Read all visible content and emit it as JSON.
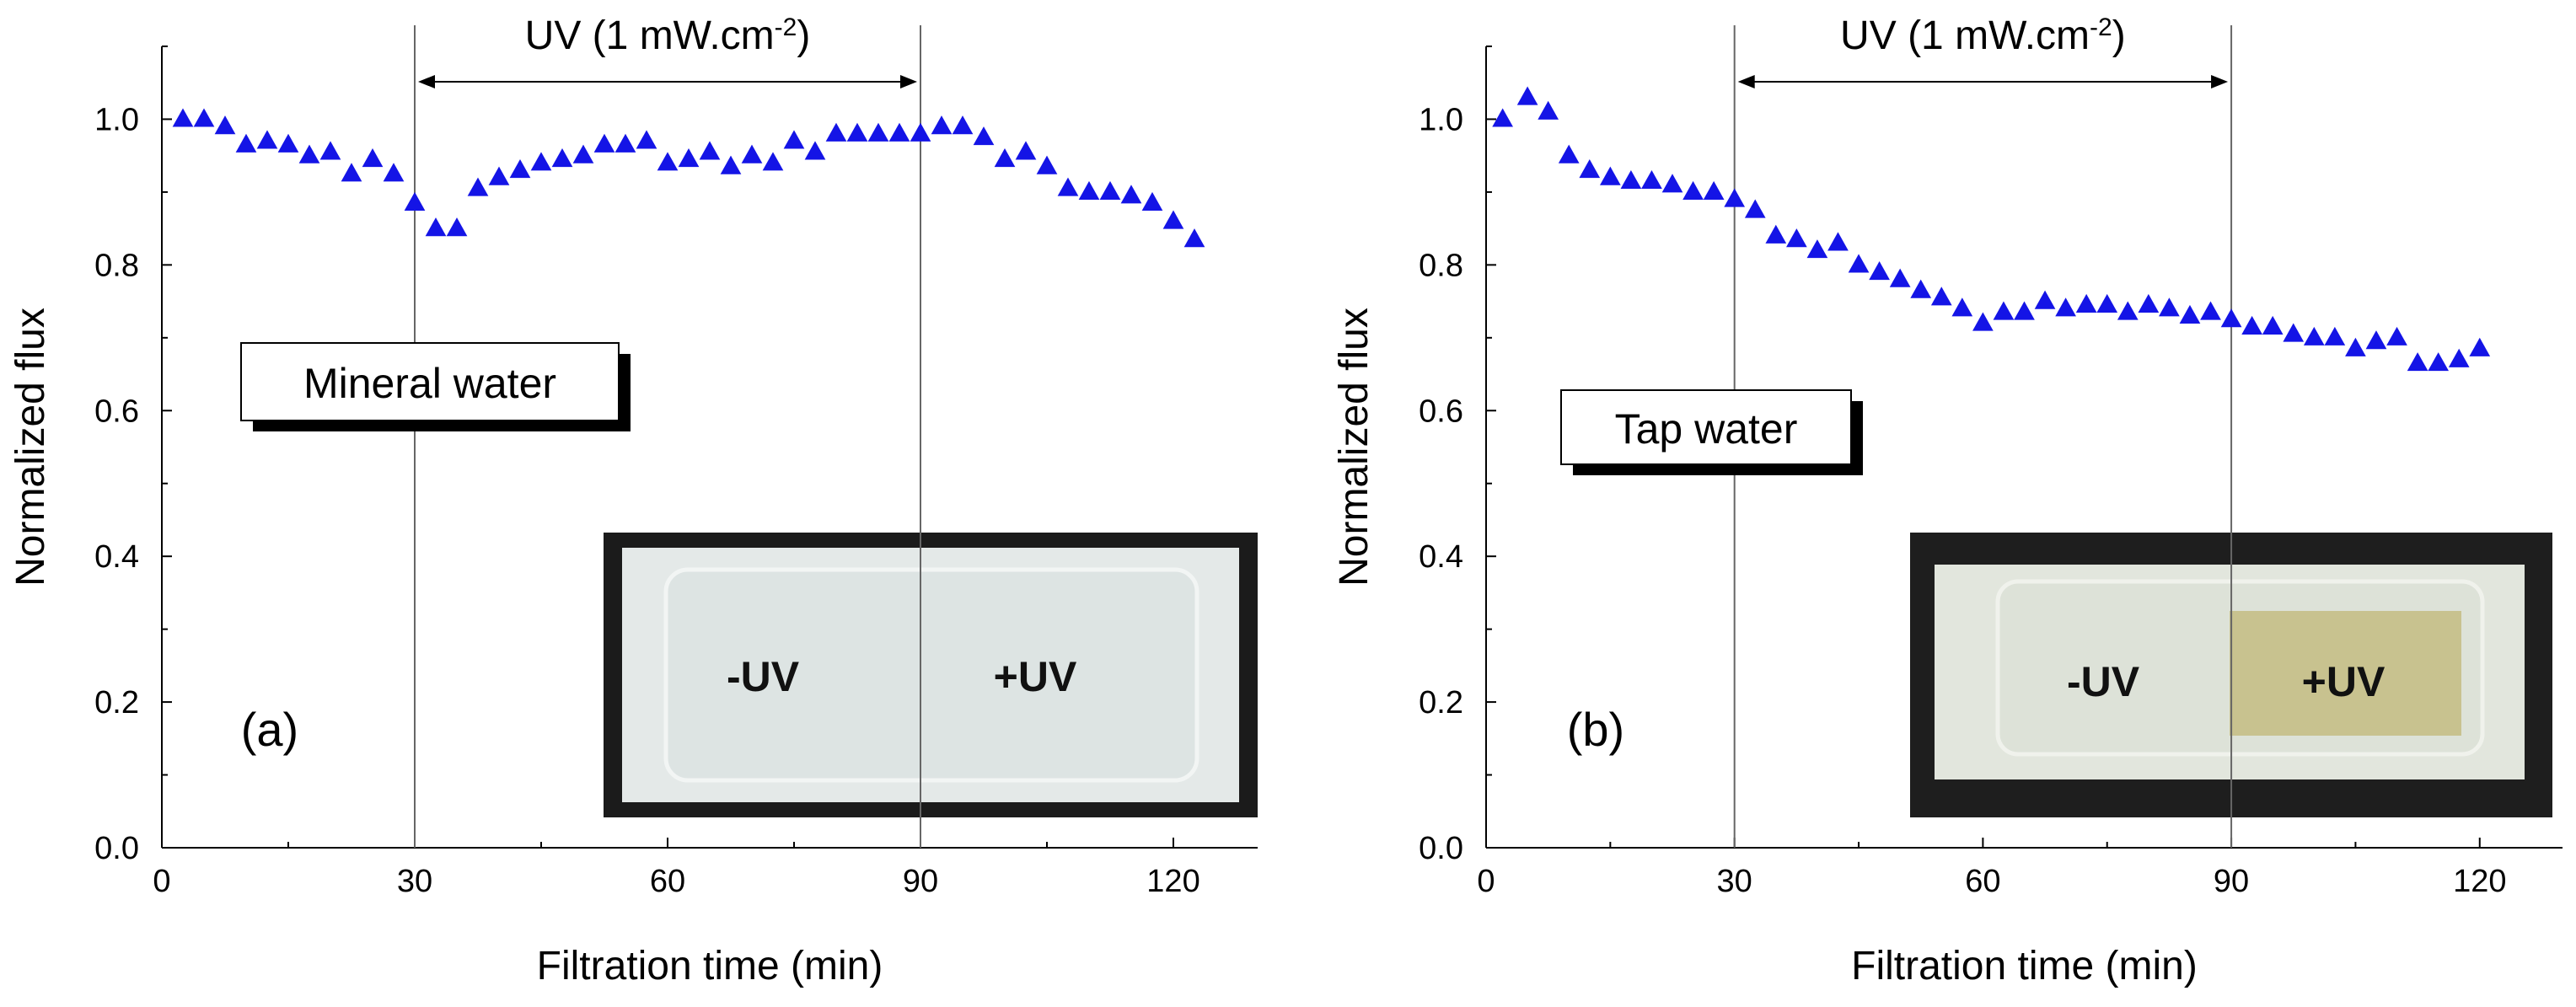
{
  "chart_data": [
    {
      "type": "scatter",
      "panel_label": "(a)",
      "legend_box": "Mineral water",
      "xlabel": "Filtration time (min)",
      "ylabel": "Normalized flux",
      "xlim": [
        0,
        130
      ],
      "ylim": [
        0,
        1.1
      ],
      "xticks": [
        "0",
        "30",
        "60",
        "90",
        "120"
      ],
      "yticks": [
        "0.0",
        "0.2",
        "0.4",
        "0.6",
        "0.8",
        "1.0"
      ],
      "uv_label": "UV (1 mW.cm",
      "uv_superscript": "-2",
      "uv_close": ")",
      "uv_start": 30,
      "uv_end": 90,
      "marker_color": "#1414e6",
      "inset": {
        "minus_label": "-UV",
        "plus_label": "+UV",
        "plus_tint": false
      },
      "series": [
        {
          "name": "Normalized flux",
          "x": [
            2.5,
            5,
            7.5,
            10,
            12.5,
            15,
            17.5,
            20,
            22.5,
            25,
            27.5,
            30,
            32.5,
            35,
            37.5,
            40,
            42.5,
            45,
            47.5,
            50,
            52.5,
            55,
            57.5,
            60,
            62.5,
            65,
            67.5,
            70,
            72.5,
            75,
            77.5,
            80,
            82.5,
            85,
            87.5,
            90,
            92.5,
            95,
            97.5,
            100,
            102.5,
            105,
            107.5,
            110,
            112.5,
            115,
            117.5,
            120,
            122.5
          ],
          "y": [
            1.0,
            1.0,
            0.99,
            0.965,
            0.97,
            0.965,
            0.95,
            0.955,
            0.925,
            0.945,
            0.925,
            0.885,
            0.85,
            0.85,
            0.905,
            0.92,
            0.93,
            0.94,
            0.945,
            0.95,
            0.965,
            0.965,
            0.97,
            0.94,
            0.945,
            0.955,
            0.935,
            0.95,
            0.94,
            0.97,
            0.955,
            0.98,
            0.98,
            0.98,
            0.98,
            0.98,
            0.99,
            0.99,
            0.975,
            0.945,
            0.955,
            0.935,
            0.905,
            0.9,
            0.9,
            0.895,
            0.885,
            0.86,
            0.835
          ]
        }
      ]
    },
    {
      "type": "scatter",
      "panel_label": "(b)",
      "legend_box": "Tap water",
      "xlabel": "Filtration time (min)",
      "ylabel": "Normalized flux",
      "xlim": [
        0,
        130
      ],
      "ylim": [
        0,
        1.1
      ],
      "xticks": [
        "0",
        "30",
        "60",
        "90",
        "120"
      ],
      "yticks": [
        "0.0",
        "0.2",
        "0.4",
        "0.6",
        "0.8",
        "1.0"
      ],
      "uv_label": "UV (1 mW.cm",
      "uv_superscript": "-2",
      "uv_close": ")",
      "uv_start": 30,
      "uv_end": 90,
      "marker_color": "#1414e6",
      "inset": {
        "minus_label": "-UV",
        "plus_label": "+UV",
        "plus_tint": true
      },
      "series": [
        {
          "name": "Normalized flux",
          "x": [
            2,
            5,
            7.5,
            10,
            12.5,
            15,
            17.5,
            20,
            22.5,
            25,
            27.5,
            30,
            32.5,
            35,
            37.5,
            40,
            42.5,
            45,
            47.5,
            50,
            52.5,
            55,
            57.5,
            60,
            62.5,
            65,
            67.5,
            70,
            72.5,
            75,
            77.5,
            80,
            82.5,
            85,
            87.5,
            90,
            92.5,
            95,
            97.5,
            100,
            102.5,
            105,
            107.5,
            110,
            112.5,
            115,
            117.5,
            120
          ],
          "y": [
            1.0,
            1.03,
            1.01,
            0.95,
            0.93,
            0.92,
            0.915,
            0.915,
            0.91,
            0.9,
            0.9,
            0.89,
            0.875,
            0.84,
            0.835,
            0.82,
            0.83,
            0.8,
            0.79,
            0.78,
            0.765,
            0.755,
            0.74,
            0.72,
            0.735,
            0.735,
            0.75,
            0.74,
            0.745,
            0.745,
            0.735,
            0.745,
            0.74,
            0.73,
            0.735,
            0.725,
            0.715,
            0.715,
            0.705,
            0.7,
            0.7,
            0.685,
            0.695,
            0.7,
            0.665,
            0.665,
            0.67,
            0.685
          ]
        }
      ]
    }
  ]
}
